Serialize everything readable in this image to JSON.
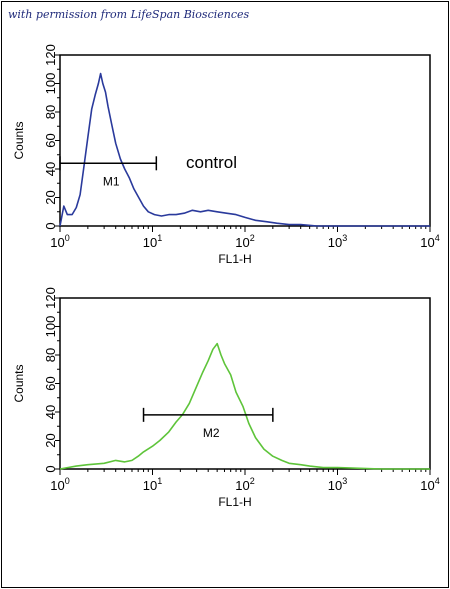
{
  "credit": "with permission from LifeSpan Biosciences",
  "chart_data": [
    {
      "type": "line",
      "xscale": "log",
      "xlim": [
        1,
        10000
      ],
      "ylim": [
        0,
        120
      ],
      "xlabel": "FL1-H",
      "ylabel": "Counts",
      "yticks": [
        "0",
        "20",
        "40",
        "60",
        "80",
        "100",
        "120"
      ],
      "xticks": [
        {
          "base": "10",
          "exp": "0"
        },
        {
          "base": "10",
          "exp": "1"
        },
        {
          "base": "10",
          "exp": "2"
        },
        {
          "base": "10",
          "exp": "3"
        },
        {
          "base": "10",
          "exp": "4"
        }
      ],
      "annotation": "control",
      "marker": {
        "label": "M1",
        "x_range": [
          1,
          11
        ],
        "y": 44
      },
      "series": [
        {
          "color": "#2a3a9c",
          "x": [
            1.0,
            1.1,
            1.2,
            1.35,
            1.5,
            1.65,
            1.8,
            2.0,
            2.2,
            2.4,
            2.6,
            2.75,
            2.9,
            3.1,
            3.3,
            3.6,
            4.0,
            4.5,
            5.0,
            5.6,
            6.3,
            7.1,
            8.0,
            9.0,
            10.5,
            12.5,
            15,
            18,
            22,
            27,
            33,
            40,
            50,
            63,
            80,
            100,
            130,
            170,
            220,
            300,
            400,
            600,
            1000,
            3000,
            10000
          ],
          "y": [
            0,
            14,
            8,
            8,
            13,
            22,
            40,
            62,
            82,
            92,
            100,
            107,
            100,
            94,
            84,
            72,
            58,
            47,
            40,
            34,
            26,
            20,
            14,
            10,
            8,
            7,
            8,
            8,
            9,
            11,
            10,
            11,
            10,
            9,
            8,
            6,
            4,
            3,
            2,
            1,
            1,
            0,
            0,
            0,
            0
          ]
        }
      ]
    },
    {
      "type": "line",
      "xscale": "log",
      "xlim": [
        1,
        10000
      ],
      "ylim": [
        0,
        120
      ],
      "xlabel": "FL1-H",
      "ylabel": "Counts",
      "yticks": [
        "0",
        "20",
        "40",
        "60",
        "80",
        "100",
        "120"
      ],
      "xticks": [
        {
          "base": "10",
          "exp": "0"
        },
        {
          "base": "10",
          "exp": "1"
        },
        {
          "base": "10",
          "exp": "2"
        },
        {
          "base": "10",
          "exp": "3"
        },
        {
          "base": "10",
          "exp": "4"
        }
      ],
      "marker": {
        "label": "M2",
        "x_range": [
          8,
          200
        ],
        "y": 38
      },
      "series": [
        {
          "color": "#5ec43a",
          "x": [
            1.0,
            1.5,
            2.0,
            3.0,
            4.0,
            5.0,
            6.0,
            7.0,
            8.0,
            10,
            12,
            15,
            18,
            21,
            25,
            30,
            35,
            40,
            45,
            50,
            55,
            60,
            70,
            80,
            95,
            110,
            130,
            160,
            200,
            250,
            300,
            400,
            500,
            700,
            1000,
            3000,
            10000
          ],
          "y": [
            0,
            2,
            3,
            4,
            6,
            5,
            6,
            9,
            12,
            16,
            20,
            26,
            33,
            38,
            46,
            58,
            68,
            76,
            84,
            88,
            80,
            74,
            66,
            54,
            44,
            32,
            22,
            14,
            9,
            6,
            4,
            3,
            2,
            1,
            1,
            0,
            0
          ]
        }
      ]
    }
  ]
}
